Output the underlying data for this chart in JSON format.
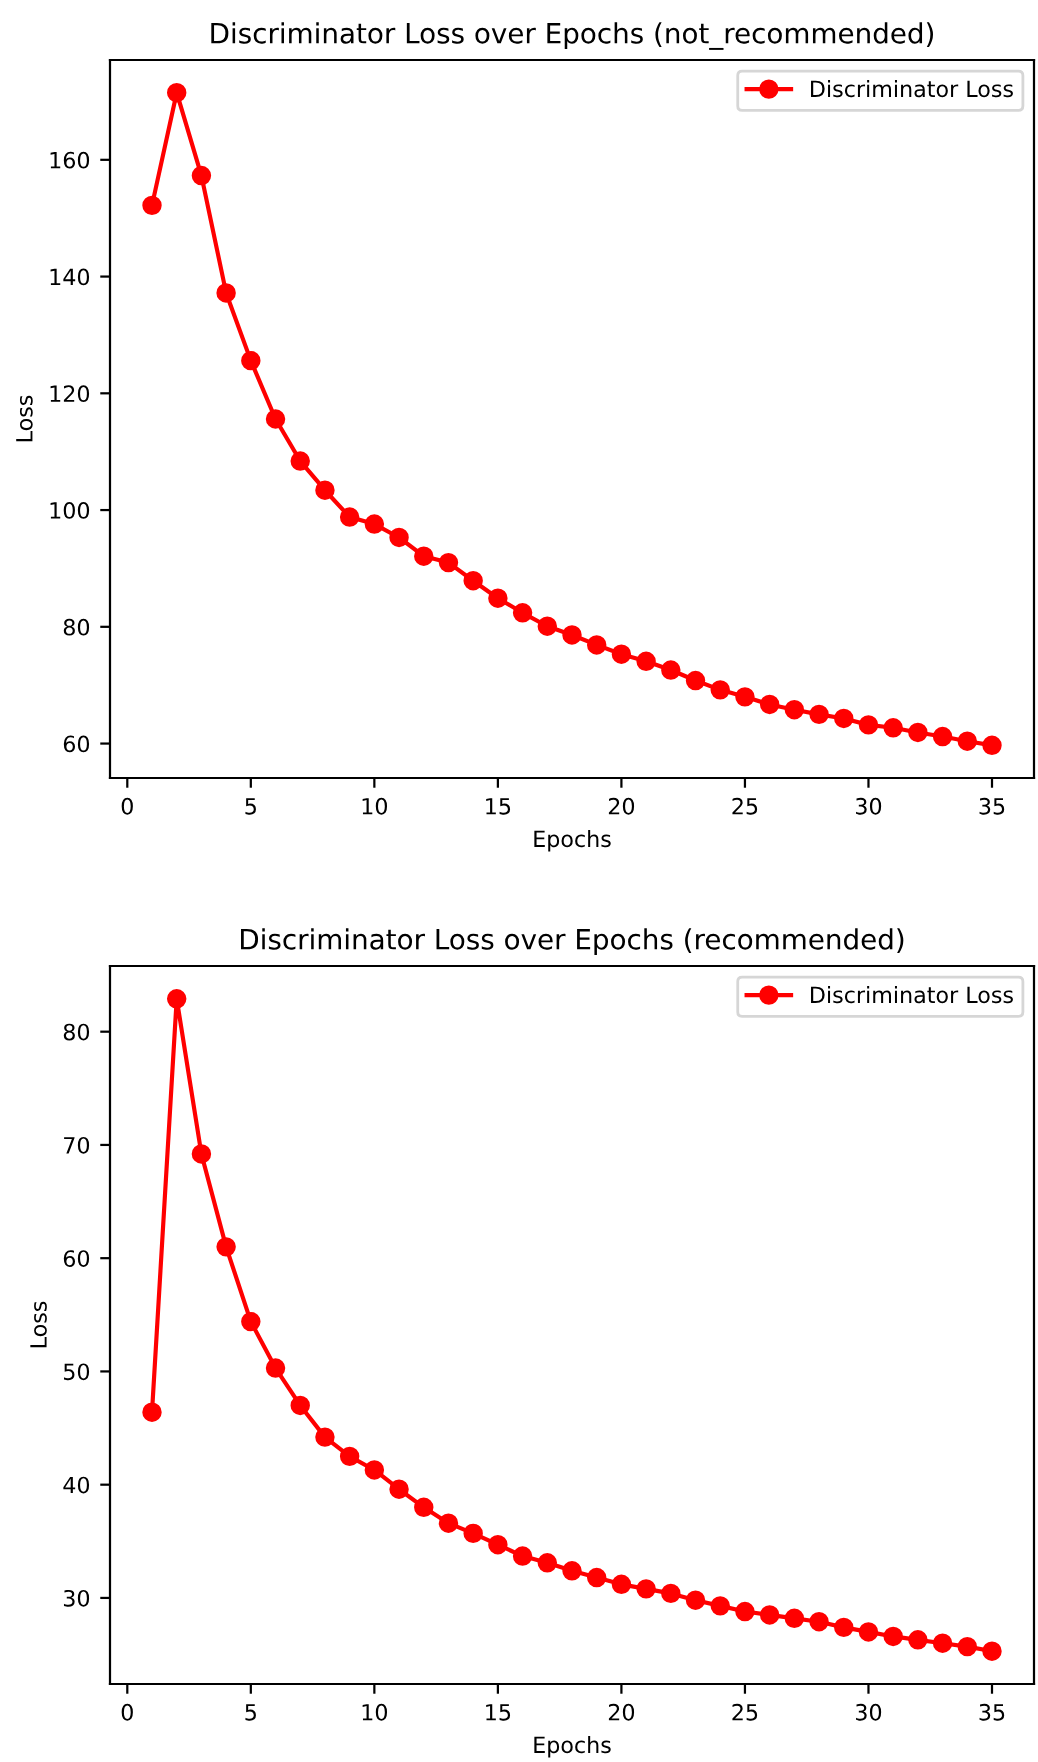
{
  "chart_data": [
    {
      "type": "line",
      "title": "Discriminator Loss over Epochs (not_recommended)",
      "xlabel": "Epochs",
      "ylabel": "Loss",
      "x": [
        1,
        2,
        3,
        4,
        5,
        6,
        7,
        8,
        9,
        10,
        11,
        12,
        13,
        14,
        15,
        16,
        17,
        18,
        19,
        20,
        21,
        22,
        23,
        24,
        25,
        26,
        27,
        28,
        29,
        30,
        31,
        32,
        33,
        34,
        35
      ],
      "series": [
        {
          "name": "Discriminator Loss",
          "color": "#ff0000",
          "values": [
            152.2,
            171.5,
            157.3,
            137.2,
            125.6,
            115.6,
            108.4,
            103.4,
            98.8,
            97.6,
            95.3,
            92.1,
            91.0,
            87.9,
            84.9,
            82.4,
            80.1,
            78.6,
            76.9,
            75.3,
            74.1,
            72.6,
            70.8,
            69.2,
            68.0,
            66.7,
            65.8,
            65.0,
            64.3,
            63.2,
            62.7,
            61.9,
            61.2,
            60.4,
            59.7
          ]
        }
      ],
      "xlim": [
        -0.7,
        36.7
      ],
      "xticks": [
        0,
        5,
        10,
        15,
        20,
        25,
        30,
        35
      ],
      "ylim": [
        54.1,
        177.1
      ],
      "yticks": [
        60,
        80,
        100,
        120,
        140,
        160
      ],
      "marker": "circle",
      "line_style": "solid",
      "legend": "top right",
      "grid": false
    },
    {
      "type": "line",
      "title": "Discriminator Loss over Epochs (recommended)",
      "xlabel": "Epochs",
      "ylabel": "Loss",
      "x": [
        1,
        2,
        3,
        4,
        5,
        6,
        7,
        8,
        9,
        10,
        11,
        12,
        13,
        14,
        15,
        16,
        17,
        18,
        19,
        20,
        21,
        22,
        23,
        24,
        25,
        26,
        27,
        28,
        29,
        30,
        31,
        32,
        33,
        34,
        35
      ],
      "series": [
        {
          "name": "Discriminator Loss",
          "color": "#ff0000",
          "values": [
            46.4,
            82.9,
            69.2,
            61.0,
            54.4,
            50.3,
            47.0,
            44.2,
            42.5,
            41.3,
            39.6,
            38.0,
            36.6,
            35.7,
            34.7,
            33.7,
            33.1,
            32.4,
            31.8,
            31.2,
            30.8,
            30.4,
            29.8,
            29.3,
            28.8,
            28.5,
            28.2,
            27.9,
            27.4,
            27.0,
            26.6,
            26.3,
            26.0,
            25.7,
            25.3
          ]
        }
      ],
      "xlim": [
        -0.7,
        36.7
      ],
      "xticks": [
        0,
        5,
        10,
        15,
        20,
        25,
        30,
        35
      ],
      "ylim": [
        22.4,
        85.8
      ],
      "yticks": [
        30,
        40,
        50,
        60,
        70,
        80
      ],
      "marker": "circle",
      "line_style": "solid",
      "legend": "top right",
      "grid": false
    }
  ]
}
